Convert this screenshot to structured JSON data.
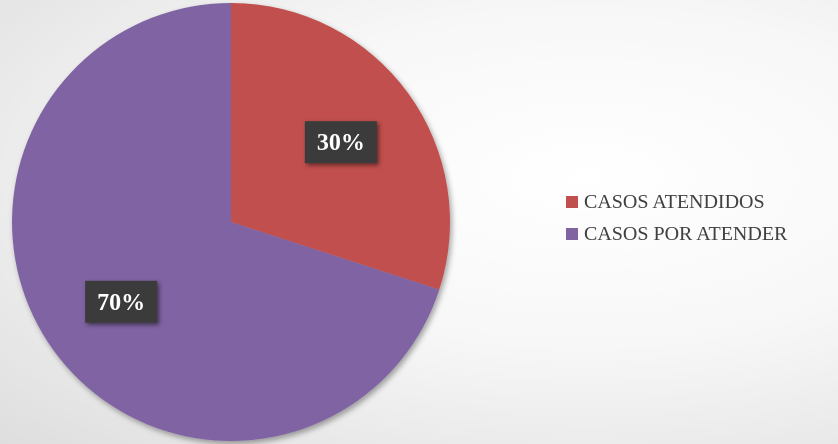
{
  "chart_data": {
    "type": "pie",
    "categories": [
      "CASOS ATENDIDOS",
      "CASOS POR ATENDER"
    ],
    "values": [
      30,
      70
    ],
    "data_labels": [
      "30%",
      "70%"
    ],
    "colors": [
      "#C0504D",
      "#8064A2"
    ],
    "start_angle": "12 o'clock",
    "direction": "clockwise",
    "legend_position": "right"
  }
}
